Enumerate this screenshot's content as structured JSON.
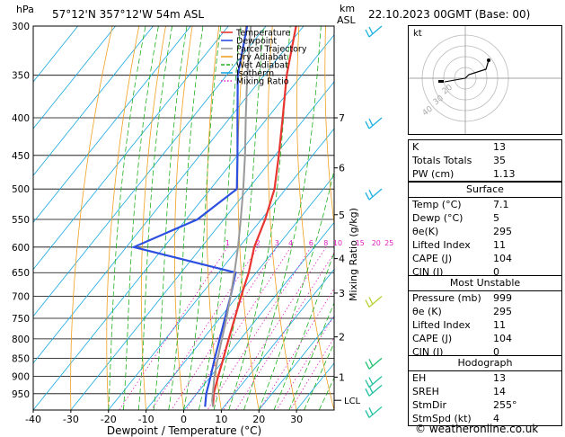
{
  "header": {
    "location": "57°12'N  357°12'W  54m  ASL",
    "datetime": "22.10.2023  00GMT  (Base: 00)",
    "hpa_unit": "hPa",
    "km_unit": "km",
    "asl_unit": "ASL"
  },
  "chart_data": {
    "type": "skew-t",
    "xlabel": "Dewpoint / Temperature (°C)",
    "y2label": "Mixing Ratio (g/kg)",
    "x_ticks": [
      -40,
      -30,
      -20,
      -10,
      0,
      10,
      20,
      30
    ],
    "xlim": [
      -40,
      40
    ],
    "pressure_ticks": [
      300,
      350,
      400,
      450,
      500,
      550,
      600,
      650,
      700,
      750,
      800,
      850,
      900,
      950
    ],
    "plim": [
      300,
      1000
    ],
    "skew_deg_per_log": 68,
    "km_ticks": [
      {
        "label": "7",
        "p": 400
      },
      {
        "label": "6",
        "p": 468
      },
      {
        "label": "5",
        "p": 542
      },
      {
        "label": "4",
        "p": 622
      },
      {
        "label": "3",
        "p": 693
      },
      {
        "label": "2",
        "p": 795
      },
      {
        "label": "1",
        "p": 902
      }
    ],
    "lcl": {
      "label": "LCL",
      "p": 970
    },
    "mixing_ratio_labels": [
      "1",
      "2",
      "3",
      "4",
      "6",
      "8",
      "10",
      "15",
      "20",
      "25"
    ],
    "mixing_ratio_values": [
      1,
      2,
      3,
      4,
      6,
      8,
      10,
      15,
      20,
      25
    ],
    "legend": [
      "Temperature",
      "Dewpoint",
      "Parcel Trajectory",
      "Dry Adiabat",
      "Wet Adiabat",
      "Isotherm",
      "Mixing Ratio"
    ],
    "series": [
      {
        "name": "Temperature",
        "color": "#e8352f",
        "points": [
          [
            990,
            7.1
          ],
          [
            950,
            4.5
          ],
          [
            900,
            2.0
          ],
          [
            850,
            -0.5
          ],
          [
            800,
            -3.2
          ],
          [
            750,
            -6.0
          ],
          [
            700,
            -9.0
          ],
          [
            650,
            -12.0
          ],
          [
            600,
            -16.0
          ],
          [
            550,
            -19.0
          ],
          [
            500,
            -23.0
          ],
          [
            450,
            -29.0
          ],
          [
            400,
            -36.0
          ],
          [
            350,
            -44.0
          ],
          [
            300,
            -52.0
          ]
        ]
      },
      {
        "name": "Dewpoint",
        "color": "#2c4fe0",
        "points": [
          [
            990,
            5.0
          ],
          [
            950,
            2.5
          ],
          [
            900,
            0.0
          ],
          [
            850,
            -2.8
          ],
          [
            800,
            -5.6
          ],
          [
            750,
            -8.6
          ],
          [
            700,
            -11.8
          ],
          [
            650,
            -15.5
          ],
          [
            600,
            -48.0
          ],
          [
            550,
            -37.0
          ],
          [
            500,
            -33.0
          ],
          [
            450,
            -40.0
          ],
          [
            400,
            -48.0
          ],
          [
            350,
            -57.0
          ],
          [
            300,
            -65.0
          ]
        ]
      },
      {
        "name": "Parcel Trajectory",
        "color": "#999999",
        "points": [
          [
            990,
            7.1
          ],
          [
            970,
            5.5
          ],
          [
            900,
            1.0
          ],
          [
            850,
            -2.0
          ],
          [
            800,
            -5.0
          ],
          [
            750,
            -8.2
          ],
          [
            700,
            -11.8
          ],
          [
            650,
            -15.8
          ],
          [
            600,
            -20.3
          ],
          [
            550,
            -25.5
          ],
          [
            500,
            -31.3
          ],
          [
            450,
            -38.0
          ],
          [
            400,
            -45.8
          ],
          [
            350,
            -54.5
          ],
          [
            300,
            -64.0
          ]
        ]
      }
    ],
    "wind_barbs": [
      {
        "p": 300,
        "color": "#20b0e0"
      },
      {
        "p": 400,
        "color": "#20b0e0"
      },
      {
        "p": 500,
        "color": "#20b0e0"
      },
      {
        "p": 700,
        "color": "#b8d030"
      },
      {
        "p": 850,
        "color": "#20c070"
      },
      {
        "p": 900,
        "color": "#20c0a0"
      },
      {
        "p": 925,
        "color": "#20c0a0"
      },
      {
        "p": 990,
        "color": "#20c0a0"
      }
    ]
  },
  "hodograph": {
    "unit_label": "kt",
    "ring_labels": [
      "40",
      "30",
      "20"
    ]
  },
  "indices": [
    {
      "key": "K",
      "value": "13"
    },
    {
      "key": "Totals Totals",
      "value": "35"
    },
    {
      "key": "PW (cm)",
      "value": "1.13"
    }
  ],
  "surface": {
    "title": "Surface",
    "rows": [
      {
        "key": "Temp (°C)",
        "value": "7.1"
      },
      {
        "key": "Dewp (°C)",
        "value": "5"
      },
      {
        "key": "θe(K)",
        "value": "295"
      },
      {
        "key": "Lifted Index",
        "value": "11"
      },
      {
        "key": "CAPE (J)",
        "value": "104"
      },
      {
        "key": "CIN (J)",
        "value": "0"
      }
    ]
  },
  "most_unstable": {
    "title": "Most Unstable",
    "rows": [
      {
        "key": "Pressure (mb)",
        "value": "999"
      },
      {
        "key": "θe (K)",
        "value": "295"
      },
      {
        "key": "Lifted Index",
        "value": "11"
      },
      {
        "key": "CAPE (J)",
        "value": "104"
      },
      {
        "key": "CIN (J)",
        "value": "0"
      }
    ]
  },
  "hodograph_table": {
    "title": "Hodograph",
    "rows": [
      {
        "key": "EH",
        "value": "13"
      },
      {
        "key": "SREH",
        "value": "14"
      },
      {
        "key": "StmDir",
        "value": "255°"
      },
      {
        "key": "StmSpd (kt)",
        "value": "4"
      }
    ]
  },
  "footer": {
    "copyright": "© weatheronline.co.uk"
  },
  "colors": {
    "temperature": "#e8352f",
    "dewpoint": "#2c4fe0",
    "parcel": "#999999",
    "dry_adiabat": "#f0a020",
    "wet_adiabat": "#20b020",
    "isotherm": "#18a8e0",
    "mixing_ratio": "#e020c0"
  }
}
